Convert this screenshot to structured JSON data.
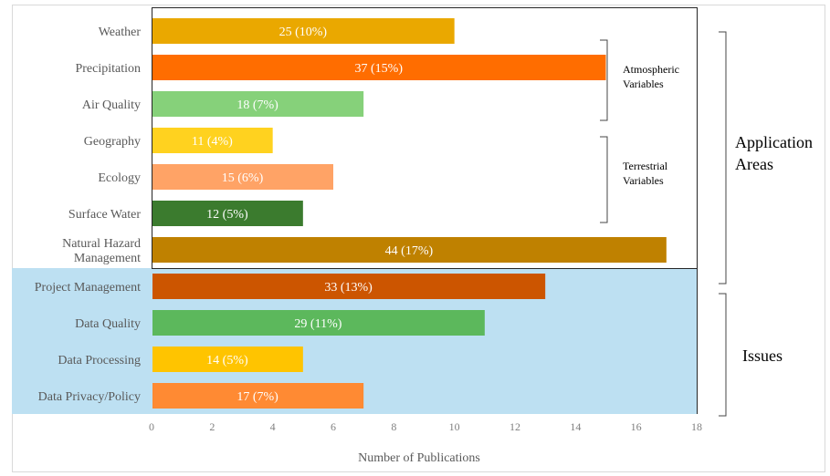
{
  "chart_data": {
    "type": "bar",
    "orientation": "horizontal",
    "categories": [
      "Weather",
      "Precipitation",
      "Air Quality",
      "Geography",
      "Ecology",
      "Surface Water",
      "Natural Hazard Management",
      "Project Management",
      "Data Quality",
      "Data Processing",
      "Data Privacy/Policy"
    ],
    "category_lines": [
      [
        "Weather"
      ],
      [
        "Precipitation"
      ],
      [
        "Air Quality"
      ],
      [
        "Geography"
      ],
      [
        "Ecology"
      ],
      [
        "Surface Water"
      ],
      [
        "Natural Hazard",
        "Management"
      ],
      [
        "Project Management"
      ],
      [
        "Data Quality"
      ],
      [
        "Data Processing"
      ],
      [
        "Data Privacy/Policy"
      ]
    ],
    "values": [
      10,
      15,
      7,
      4,
      6,
      5,
      17,
      13,
      11,
      5,
      7
    ],
    "data_labels": [
      "25 (10%)",
      "37 (15%)",
      "18 (7%)",
      "11 (4%)",
      "15 (6%)",
      "12 (5%)",
      "44 (17%)",
      "33 (13%)",
      "29 (11%)",
      "14 (5%)",
      "17 (7%)"
    ],
    "bar_colors": [
      "#eaa800",
      "#ff6d00",
      "#86d17a",
      "#ffd21f",
      "#ffa366",
      "#3b7b2e",
      "#bf8100",
      "#cc5500",
      "#5cb85c",
      "#ffc400",
      "#ff8a33"
    ],
    "xlabel": "Number of Publications",
    "ylabel": "",
    "xlim": [
      0,
      18
    ],
    "xticks": [
      0,
      2,
      4,
      6,
      8,
      10,
      12,
      14,
      16,
      18
    ],
    "grid": false,
    "highlight_region_color": "#bde0f2",
    "groups": [
      {
        "label_lines": [
          "Atmospheric",
          "Variables"
        ],
        "from": 0,
        "to": 2
      },
      {
        "label_lines": [
          "Terrestrial",
          "Variables"
        ],
        "from": 3,
        "to": 5
      },
      {
        "label_lines": [
          "Application",
          "Areas"
        ],
        "from": 0,
        "to": 6
      },
      {
        "label_lines": [
          "Issues"
        ],
        "from": 7,
        "to": 10
      }
    ]
  }
}
